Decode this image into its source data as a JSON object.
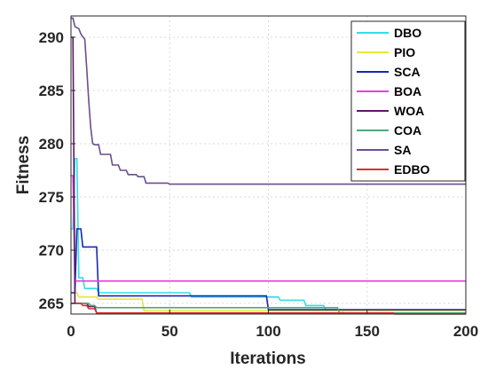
{
  "chart_data": {
    "type": "line",
    "xlabel": "Iterations",
    "ylabel": "Fitness",
    "xlim": [
      0,
      200
    ],
    "ylim": [
      264,
      292
    ],
    "xticks": [
      0,
      50,
      100,
      150,
      200
    ],
    "yticks": [
      265,
      270,
      275,
      280,
      285,
      290
    ],
    "grid": true,
    "legend_position": "top-right",
    "series": [
      {
        "name": "DBO",
        "color": "#33dde6",
        "points": [
          [
            0,
            272
          ],
          [
            1,
            272
          ],
          [
            2,
            278.6
          ],
          [
            3,
            278.6
          ],
          [
            4,
            267.4
          ],
          [
            6,
            267.4
          ],
          [
            7,
            266.4
          ],
          [
            13,
            266.4
          ],
          [
            14,
            266
          ],
          [
            60,
            266
          ],
          [
            61,
            265.6
          ],
          [
            105,
            265.6
          ],
          [
            106,
            265.3
          ],
          [
            118,
            265.3
          ],
          [
            119,
            264.8
          ],
          [
            128,
            264.8
          ],
          [
            129,
            264.4
          ],
          [
            137,
            264.4
          ],
          [
            138,
            264.1
          ],
          [
            200,
            264.1
          ]
        ]
      },
      {
        "name": "PIO",
        "color": "#e8e838",
        "points": [
          [
            0,
            266
          ],
          [
            3,
            266
          ],
          [
            4,
            265.6
          ],
          [
            13,
            265.6
          ],
          [
            14,
            265.4
          ],
          [
            36,
            265.4
          ],
          [
            37,
            264.3
          ],
          [
            200,
            264.3
          ]
        ]
      },
      {
        "name": "SCA",
        "color": "#1428b4",
        "points": [
          [
            0,
            266
          ],
          [
            2,
            266
          ],
          [
            3,
            272
          ],
          [
            5,
            272
          ],
          [
            6,
            270.3
          ],
          [
            13,
            270.3
          ],
          [
            14,
            265.7
          ],
          [
            99,
            265.7
          ],
          [
            100,
            264.4
          ],
          [
            200,
            264.4
          ]
        ]
      },
      {
        "name": "BOA",
        "color": "#e640e6",
        "points": [
          [
            0,
            277
          ],
          [
            1,
            277
          ],
          [
            2,
            267.1
          ],
          [
            200,
            267.1
          ]
        ]
      },
      {
        "name": "WOA",
        "color": "#5c1866",
        "points": [
          [
            0,
            290
          ],
          [
            1,
            290
          ],
          [
            2,
            265
          ],
          [
            8,
            265
          ],
          [
            9,
            264.7
          ],
          [
            12,
            264.7
          ],
          [
            13,
            264.1
          ],
          [
            200,
            264.1
          ]
        ]
      },
      {
        "name": "COA",
        "color": "#4fa87a",
        "points": [
          [
            0,
            265
          ],
          [
            9,
            265
          ],
          [
            10,
            264.8
          ],
          [
            12,
            264.8
          ],
          [
            13,
            264.6
          ],
          [
            135,
            264.6
          ],
          [
            136,
            264.1
          ],
          [
            200,
            264.1
          ]
        ]
      },
      {
        "name": "SA",
        "color": "#6a4e8e",
        "points": [
          [
            0,
            291.8
          ],
          [
            1,
            291.8
          ],
          [
            2,
            291
          ],
          [
            4,
            290.8
          ],
          [
            5,
            290.3
          ],
          [
            7,
            289.8
          ],
          [
            8,
            287
          ],
          [
            9,
            284
          ],
          [
            10,
            281.5
          ],
          [
            11,
            280
          ],
          [
            12,
            279.9
          ],
          [
            14,
            279.9
          ],
          [
            15,
            279
          ],
          [
            20,
            279
          ],
          [
            21,
            278
          ],
          [
            24,
            278
          ],
          [
            25,
            277.5
          ],
          [
            28,
            277.5
          ],
          [
            29,
            277.1
          ],
          [
            33,
            277.1
          ],
          [
            34,
            276.9
          ],
          [
            37,
            276.9
          ],
          [
            38,
            276.3
          ],
          [
            49,
            276.3
          ],
          [
            50,
            276.2
          ],
          [
            200,
            276.2
          ]
        ]
      },
      {
        "name": "EDBO",
        "color": "#d93030",
        "points": [
          [
            0,
            265
          ],
          [
            5,
            265
          ],
          [
            6,
            264.8
          ],
          [
            8,
            264.8
          ],
          [
            9,
            264.5
          ],
          [
            12,
            264.5
          ],
          [
            13,
            264.1
          ],
          [
            163,
            264.1
          ],
          [
            164,
            264
          ],
          [
            200,
            264
          ]
        ]
      }
    ]
  }
}
